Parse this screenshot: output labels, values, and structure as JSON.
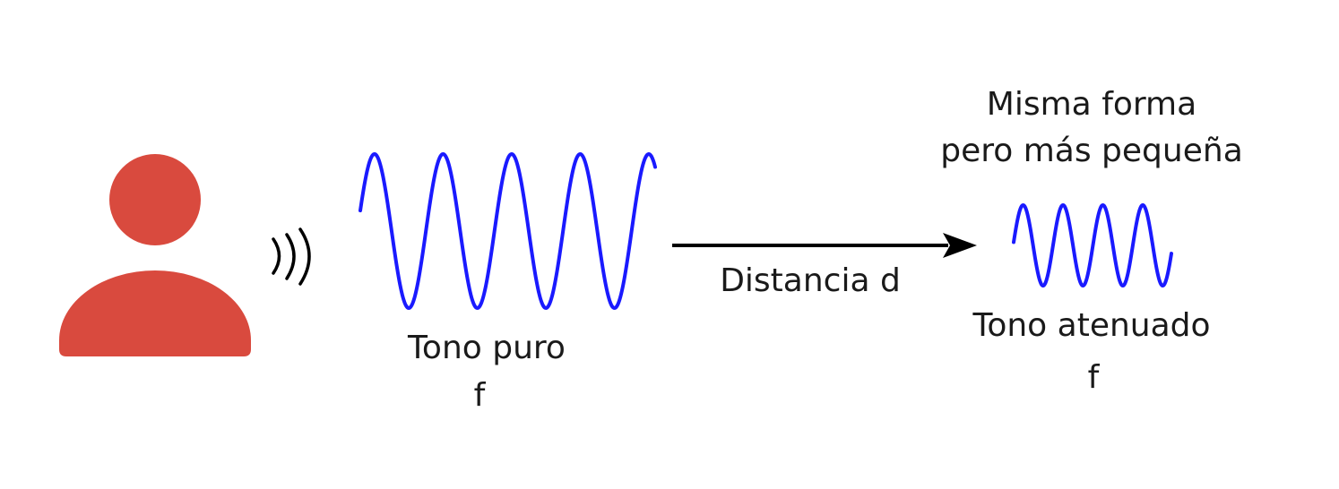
{
  "colors": {
    "person": "#d94a3e",
    "wave": "#1a1aff",
    "ink": "#000000"
  },
  "icons": {
    "speaker": "person-icon",
    "sound": "sound-waves-icon",
    "arrow": "arrow-right-icon"
  },
  "labels": {
    "pure_tone_line1": "Tono puro",
    "pure_tone_line2": "f",
    "distance": "Distancia d",
    "caption_line1": "Misma forma",
    "caption_line2": "pero más pequeña",
    "attenuated_line1": "Tono atenuado",
    "attenuated_line2": "f"
  }
}
